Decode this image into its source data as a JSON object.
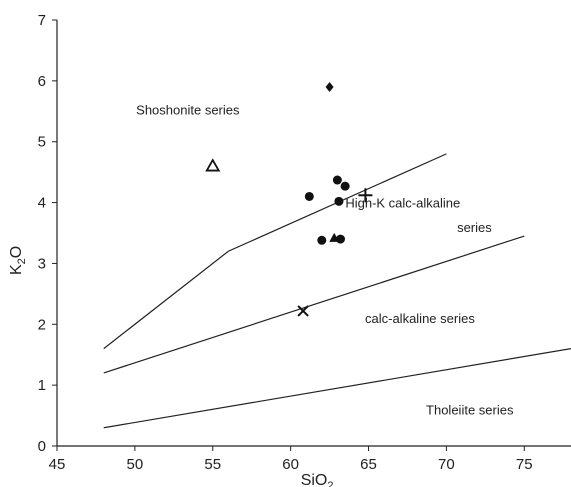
{
  "chart_data": {
    "type": "scatter",
    "title": "",
    "xlabel": "SiO",
    "xlabel_sub": "2",
    "ylabel": "K",
    "ylabel_sub": "2",
    "ylabel_tail": "O",
    "xlim": [
      45,
      78
    ],
    "ylim": [
      0,
      7
    ],
    "xticks": [
      45,
      50,
      55,
      60,
      65,
      70,
      75
    ],
    "yticks": [
      0,
      1,
      2,
      3,
      4,
      5,
      6,
      7
    ],
    "grid": false,
    "legend": "none",
    "boundaries": [
      {
        "points": [
          [
            48,
            1.6
          ],
          [
            56,
            3.2
          ],
          [
            70,
            4.8
          ]
        ]
      },
      {
        "points": [
          [
            48,
            1.2
          ],
          [
            75,
            3.45
          ]
        ]
      },
      {
        "points": [
          [
            48,
            0.3
          ],
          [
            78,
            1.6
          ]
        ]
      }
    ],
    "region_labels": [
      {
        "text": "Shoshonite series",
        "x": 53.4,
        "y": 5.45
      },
      {
        "text": "High-K calc-alkaline",
        "x": 67.2,
        "y": 3.92
      },
      {
        "text": "series",
        "x": 71.8,
        "y": 3.52
      },
      {
        "text": "calc-alkaline series",
        "x": 68.3,
        "y": 2.02
      },
      {
        "text": "Tholeiite series",
        "x": 71.5,
        "y": 0.52
      }
    ],
    "series": [
      {
        "marker": "diamond",
        "x": [
          62.5
        ],
        "y": [
          5.9
        ]
      },
      {
        "marker": "circle",
        "x": [
          61.2,
          63.0,
          63.5,
          63.1,
          62.0,
          63.2
        ],
        "y": [
          4.1,
          4.37,
          4.27,
          4.02,
          3.38,
          3.4
        ]
      },
      {
        "marker": "triangle-filled",
        "x": [
          62.8
        ],
        "y": [
          3.42
        ]
      },
      {
        "marker": "triangle-open",
        "x": [
          55.0
        ],
        "y": [
          4.6
        ]
      },
      {
        "marker": "plus",
        "x": [
          64.8
        ],
        "y": [
          4.12
        ]
      },
      {
        "marker": "cross",
        "x": [
          60.8
        ],
        "y": [
          2.22
        ]
      }
    ]
  }
}
